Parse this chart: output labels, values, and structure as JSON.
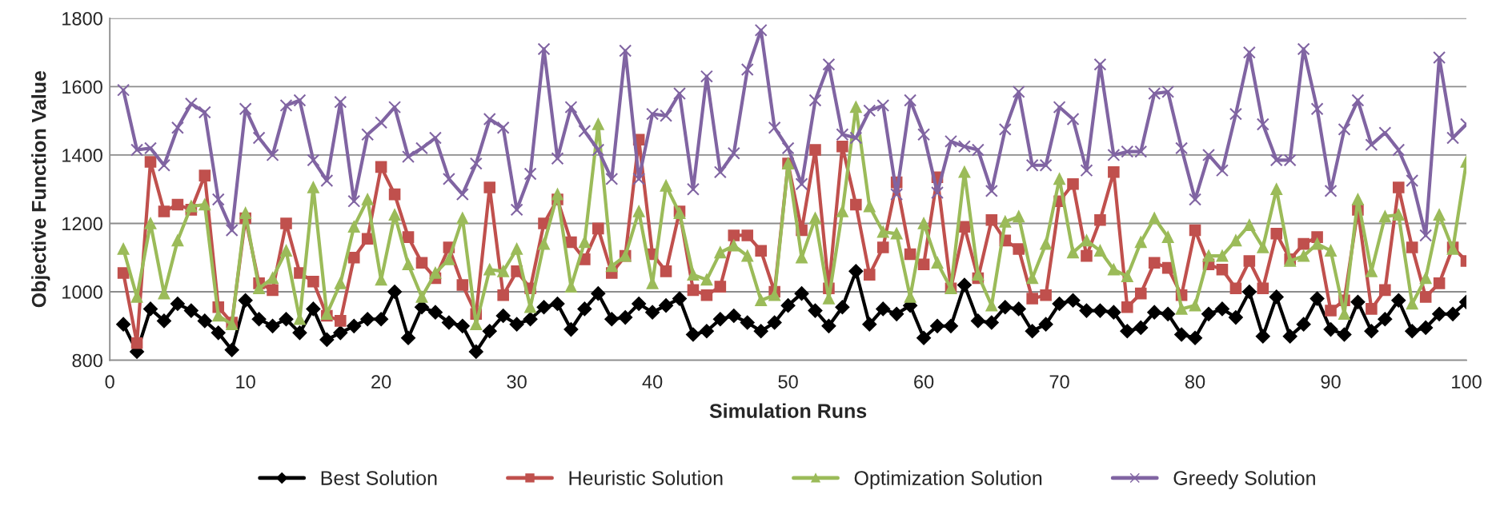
{
  "chart_data": {
    "type": "line",
    "xlabel": "Simulation Runs",
    "ylabel": "Objective Function Value",
    "x": [
      1,
      2,
      3,
      4,
      5,
      6,
      7,
      8,
      9,
      10,
      11,
      12,
      13,
      14,
      15,
      16,
      17,
      18,
      19,
      20,
      21,
      22,
      23,
      24,
      25,
      26,
      27,
      28,
      29,
      30,
      31,
      32,
      33,
      34,
      35,
      36,
      37,
      38,
      39,
      40,
      41,
      42,
      43,
      44,
      45,
      46,
      47,
      48,
      49,
      50,
      51,
      52,
      53,
      54,
      55,
      56,
      57,
      58,
      59,
      60,
      61,
      62,
      63,
      64,
      65,
      66,
      67,
      68,
      69,
      70,
      71,
      72,
      73,
      74,
      75,
      76,
      77,
      78,
      79,
      80,
      81,
      82,
      83,
      84,
      85,
      86,
      87,
      88,
      89,
      90,
      91,
      92,
      93,
      94,
      95,
      96,
      97,
      98,
      99,
      100
    ],
    "xlim": [
      0,
      100
    ],
    "xticks": [
      0,
      10,
      20,
      30,
      40,
      50,
      60,
      70,
      80,
      90,
      100
    ],
    "ylim": [
      800,
      1800
    ],
    "yticks": [
      800,
      1000,
      1200,
      1400,
      1600,
      1800
    ],
    "grid": "y",
    "legend": "bottom",
    "line_style": "solid",
    "series": [
      {
        "name": "Best Solution",
        "color": "#000000",
        "marker": "diamond",
        "values": [
          905,
          825,
          950,
          915,
          965,
          945,
          915,
          880,
          830,
          975,
          920,
          900,
          920,
          880,
          950,
          860,
          880,
          900,
          920,
          920,
          1000,
          865,
          955,
          940,
          910,
          900,
          825,
          885,
          930,
          905,
          920,
          955,
          965,
          890,
          950,
          995,
          920,
          925,
          965,
          940,
          960,
          980,
          875,
          885,
          920,
          930,
          910,
          885,
          910,
          960,
          995,
          945,
          900,
          955,
          1060,
          905,
          950,
          935,
          960,
          865,
          900,
          900,
          1020,
          915,
          910,
          955,
          950,
          885,
          905,
          965,
          975,
          945,
          945,
          940,
          885,
          895,
          940,
          935,
          875,
          865,
          935,
          950,
          925,
          1000,
          870,
          985,
          870,
          905,
          980,
          890,
          875,
          970,
          885,
          920,
          975,
          885,
          895,
          935,
          935,
          970
        ]
      },
      {
        "name": "Heuristic Solution",
        "color": "#c0504d",
        "marker": "square",
        "values": [
          1055,
          850,
          1380,
          1235,
          1255,
          1240,
          1340,
          955,
          910,
          1215,
          1025,
          1005,
          1200,
          1055,
          1030,
          930,
          915,
          1100,
          1155,
          1365,
          1285,
          1160,
          1085,
          1040,
          1130,
          1020,
          935,
          1305,
          990,
          1060,
          1010,
          1200,
          1270,
          1145,
          1095,
          1185,
          1055,
          1105,
          1445,
          1110,
          1060,
          1235,
          1005,
          990,
          1015,
          1165,
          1165,
          1120,
          1000,
          1375,
          1180,
          1415,
          1010,
          1425,
          1255,
          1050,
          1130,
          1320,
          1110,
          1080,
          1335,
          1010,
          1190,
          1040,
          1210,
          1150,
          1125,
          980,
          990,
          1265,
          1315,
          1105,
          1210,
          1350,
          955,
          995,
          1085,
          1070,
          990,
          1180,
          1080,
          1065,
          1010,
          1090,
          1010,
          1170,
          1095,
          1140,
          1160,
          945,
          975,
          1240,
          950,
          1005,
          1305,
          1130,
          985,
          1025,
          1130,
          1090
        ]
      },
      {
        "name": "Optimization Solution",
        "color": "#9bbb59",
        "marker": "triangle",
        "values": [
          1125,
          985,
          1200,
          995,
          1150,
          1250,
          1255,
          930,
          905,
          1230,
          1010,
          1040,
          1120,
          920,
          1305,
          935,
          1025,
          1190,
          1270,
          1035,
          1225,
          1080,
          985,
          1055,
          1095,
          1215,
          905,
          1065,
          1060,
          1125,
          955,
          1140,
          1285,
          1015,
          1145,
          1490,
          1075,
          1105,
          1235,
          1025,
          1310,
          1230,
          1050,
          1035,
          1115,
          1135,
          1105,
          975,
          990,
          1375,
          1100,
          1215,
          980,
          1235,
          1540,
          1250,
          1175,
          1170,
          985,
          1200,
          1085,
          1010,
          1350,
          1050,
          960,
          1205,
          1220,
          1040,
          1140,
          1330,
          1115,
          1150,
          1120,
          1065,
          1045,
          1145,
          1215,
          1160,
          950,
          960,
          1105,
          1105,
          1150,
          1195,
          1130,
          1300,
          1090,
          1105,
          1140,
          1120,
          935,
          1270,
          1060,
          1220,
          1225,
          965,
          1040,
          1225,
          1125,
          1380
        ]
      },
      {
        "name": "Greedy Solution",
        "color": "#8064a2",
        "marker": "cross",
        "values": [
          1590,
          1415,
          1420,
          1370,
          1480,
          1550,
          1525,
          1270,
          1180,
          1535,
          1450,
          1400,
          1545,
          1560,
          1385,
          1325,
          1555,
          1265,
          1460,
          1495,
          1540,
          1395,
          1420,
          1450,
          1330,
          1285,
          1375,
          1505,
          1480,
          1240,
          1345,
          1710,
          1390,
          1540,
          1470,
          1415,
          1330,
          1705,
          1330,
          1520,
          1515,
          1580,
          1300,
          1630,
          1350,
          1405,
          1650,
          1765,
          1480,
          1420,
          1315,
          1560,
          1665,
          1460,
          1450,
          1530,
          1545,
          1285,
          1560,
          1460,
          1290,
          1440,
          1425,
          1415,
          1295,
          1475,
          1585,
          1370,
          1370,
          1540,
          1505,
          1355,
          1665,
          1400,
          1410,
          1410,
          1580,
          1585,
          1420,
          1270,
          1400,
          1355,
          1520,
          1700,
          1490,
          1385,
          1385,
          1710,
          1535,
          1295,
          1475,
          1560,
          1430,
          1465,
          1415,
          1325,
          1165,
          1685,
          1450,
          1490
        ]
      }
    ]
  }
}
